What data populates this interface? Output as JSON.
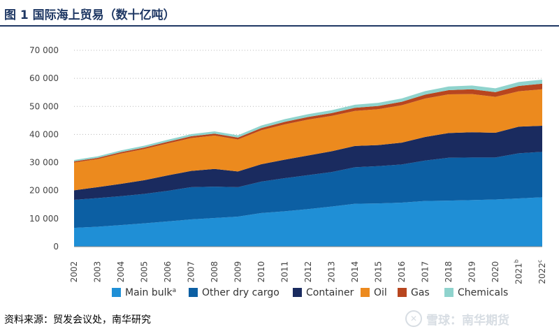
{
  "header": {
    "title": "图 1  国际海上贸易（数十亿吨）"
  },
  "source": {
    "text": "资料来源：贸发会议处，南华研究"
  },
  "watermark": {
    "text": "雪球：南华期货",
    "icon_glyph": "✕"
  },
  "colors": {
    "title": "#1f3864",
    "series": [
      "#1f8fd6",
      "#0c5fa3",
      "#1a2b5f",
      "#ec8a1e",
      "#b8461f",
      "#8fd3cd"
    ],
    "axis_text": "#444444",
    "grid": "#b8b8b8"
  },
  "chart_data": {
    "type": "area",
    "stacked": true,
    "title": "",
    "xlabel": "",
    "ylabel": "",
    "ylim": [
      0,
      70000
    ],
    "yticks": [
      0,
      10000,
      20000,
      30000,
      40000,
      50000,
      60000,
      70000
    ],
    "ytick_labels": [
      "0",
      "10 000",
      "20 000",
      "30 000",
      "40 000",
      "50 000",
      "60 000",
      "70 000"
    ],
    "grid": "horizontal dotted",
    "legend_position": "bottom",
    "categories": [
      "2002",
      "2003",
      "2004",
      "2005",
      "2006",
      "2007",
      "2008",
      "2009",
      "2010",
      "2011",
      "2012",
      "2013",
      "2014",
      "2015",
      "2016",
      "2017",
      "2018",
      "2019",
      "2020",
      "2021b",
      "2022c"
    ],
    "category_labels": [
      {
        "text": "2002",
        "sup": ""
      },
      {
        "text": "2003",
        "sup": ""
      },
      {
        "text": "2004",
        "sup": ""
      },
      {
        "text": "2005",
        "sup": ""
      },
      {
        "text": "2006",
        "sup": ""
      },
      {
        "text": "2007",
        "sup": ""
      },
      {
        "text": "2008",
        "sup": ""
      },
      {
        "text": "2009",
        "sup": ""
      },
      {
        "text": "2010",
        "sup": ""
      },
      {
        "text": "2011",
        "sup": ""
      },
      {
        "text": "2012",
        "sup": ""
      },
      {
        "text": "2013",
        "sup": ""
      },
      {
        "text": "2014",
        "sup": ""
      },
      {
        "text": "2015",
        "sup": ""
      },
      {
        "text": "2016",
        "sup": ""
      },
      {
        "text": "2017",
        "sup": ""
      },
      {
        "text": "2018",
        "sup": ""
      },
      {
        "text": "2019",
        "sup": ""
      },
      {
        "text": "2020",
        "sup": ""
      },
      {
        "text": "2021",
        "sup": "b"
      },
      {
        "text": "2022",
        "sup": "c"
      }
    ],
    "series": [
      {
        "name": "Main bulk",
        "legend_sup": "a",
        "values": [
          6700,
          7100,
          7700,
          8300,
          9000,
          9700,
          10200,
          10700,
          12000,
          12600,
          13400,
          14300,
          15300,
          15400,
          15700,
          16300,
          16400,
          16600,
          16800,
          17200,
          17600
        ]
      },
      {
        "name": "Other dry cargo",
        "legend_sup": "",
        "values": [
          10000,
          10200,
          10300,
          10500,
          10900,
          11500,
          11200,
          10500,
          11200,
          11800,
          12100,
          12300,
          13000,
          13300,
          13600,
          14400,
          15300,
          15200,
          15000,
          16100,
          16200
        ]
      },
      {
        "name": "Container",
        "legend_sup": "",
        "values": [
          3400,
          3900,
          4400,
          4900,
          5500,
          5800,
          6300,
          5600,
          6200,
          6600,
          7000,
          7400,
          7600,
          7500,
          7800,
          8400,
          8800,
          9000,
          8800,
          9500,
          9300
        ]
      },
      {
        "name": "Oil",
        "legend_sup": "",
        "values": [
          9900,
          10000,
          10800,
          11100,
          11400,
          11700,
          11900,
          11400,
          12100,
          12600,
          12800,
          12600,
          12500,
          12800,
          13300,
          13700,
          13800,
          13600,
          12800,
          12600,
          13000
        ]
      },
      {
        "name": "Gas",
        "legend_sup": "",
        "values": [
          400,
          450,
          500,
          550,
          600,
          650,
          700,
          700,
          800,
          900,
          950,
          1000,
          1100,
          1150,
          1250,
          1400,
          1500,
          1700,
          1700,
          1900,
          2000
        ]
      },
      {
        "name": "Chemicals",
        "legend_sup": "",
        "values": [
          500,
          550,
          600,
          650,
          700,
          750,
          800,
          800,
          900,
          950,
          1000,
          1050,
          1100,
          1150,
          1200,
          1250,
          1300,
          1350,
          1350,
          1400,
          1450
        ]
      }
    ]
  }
}
